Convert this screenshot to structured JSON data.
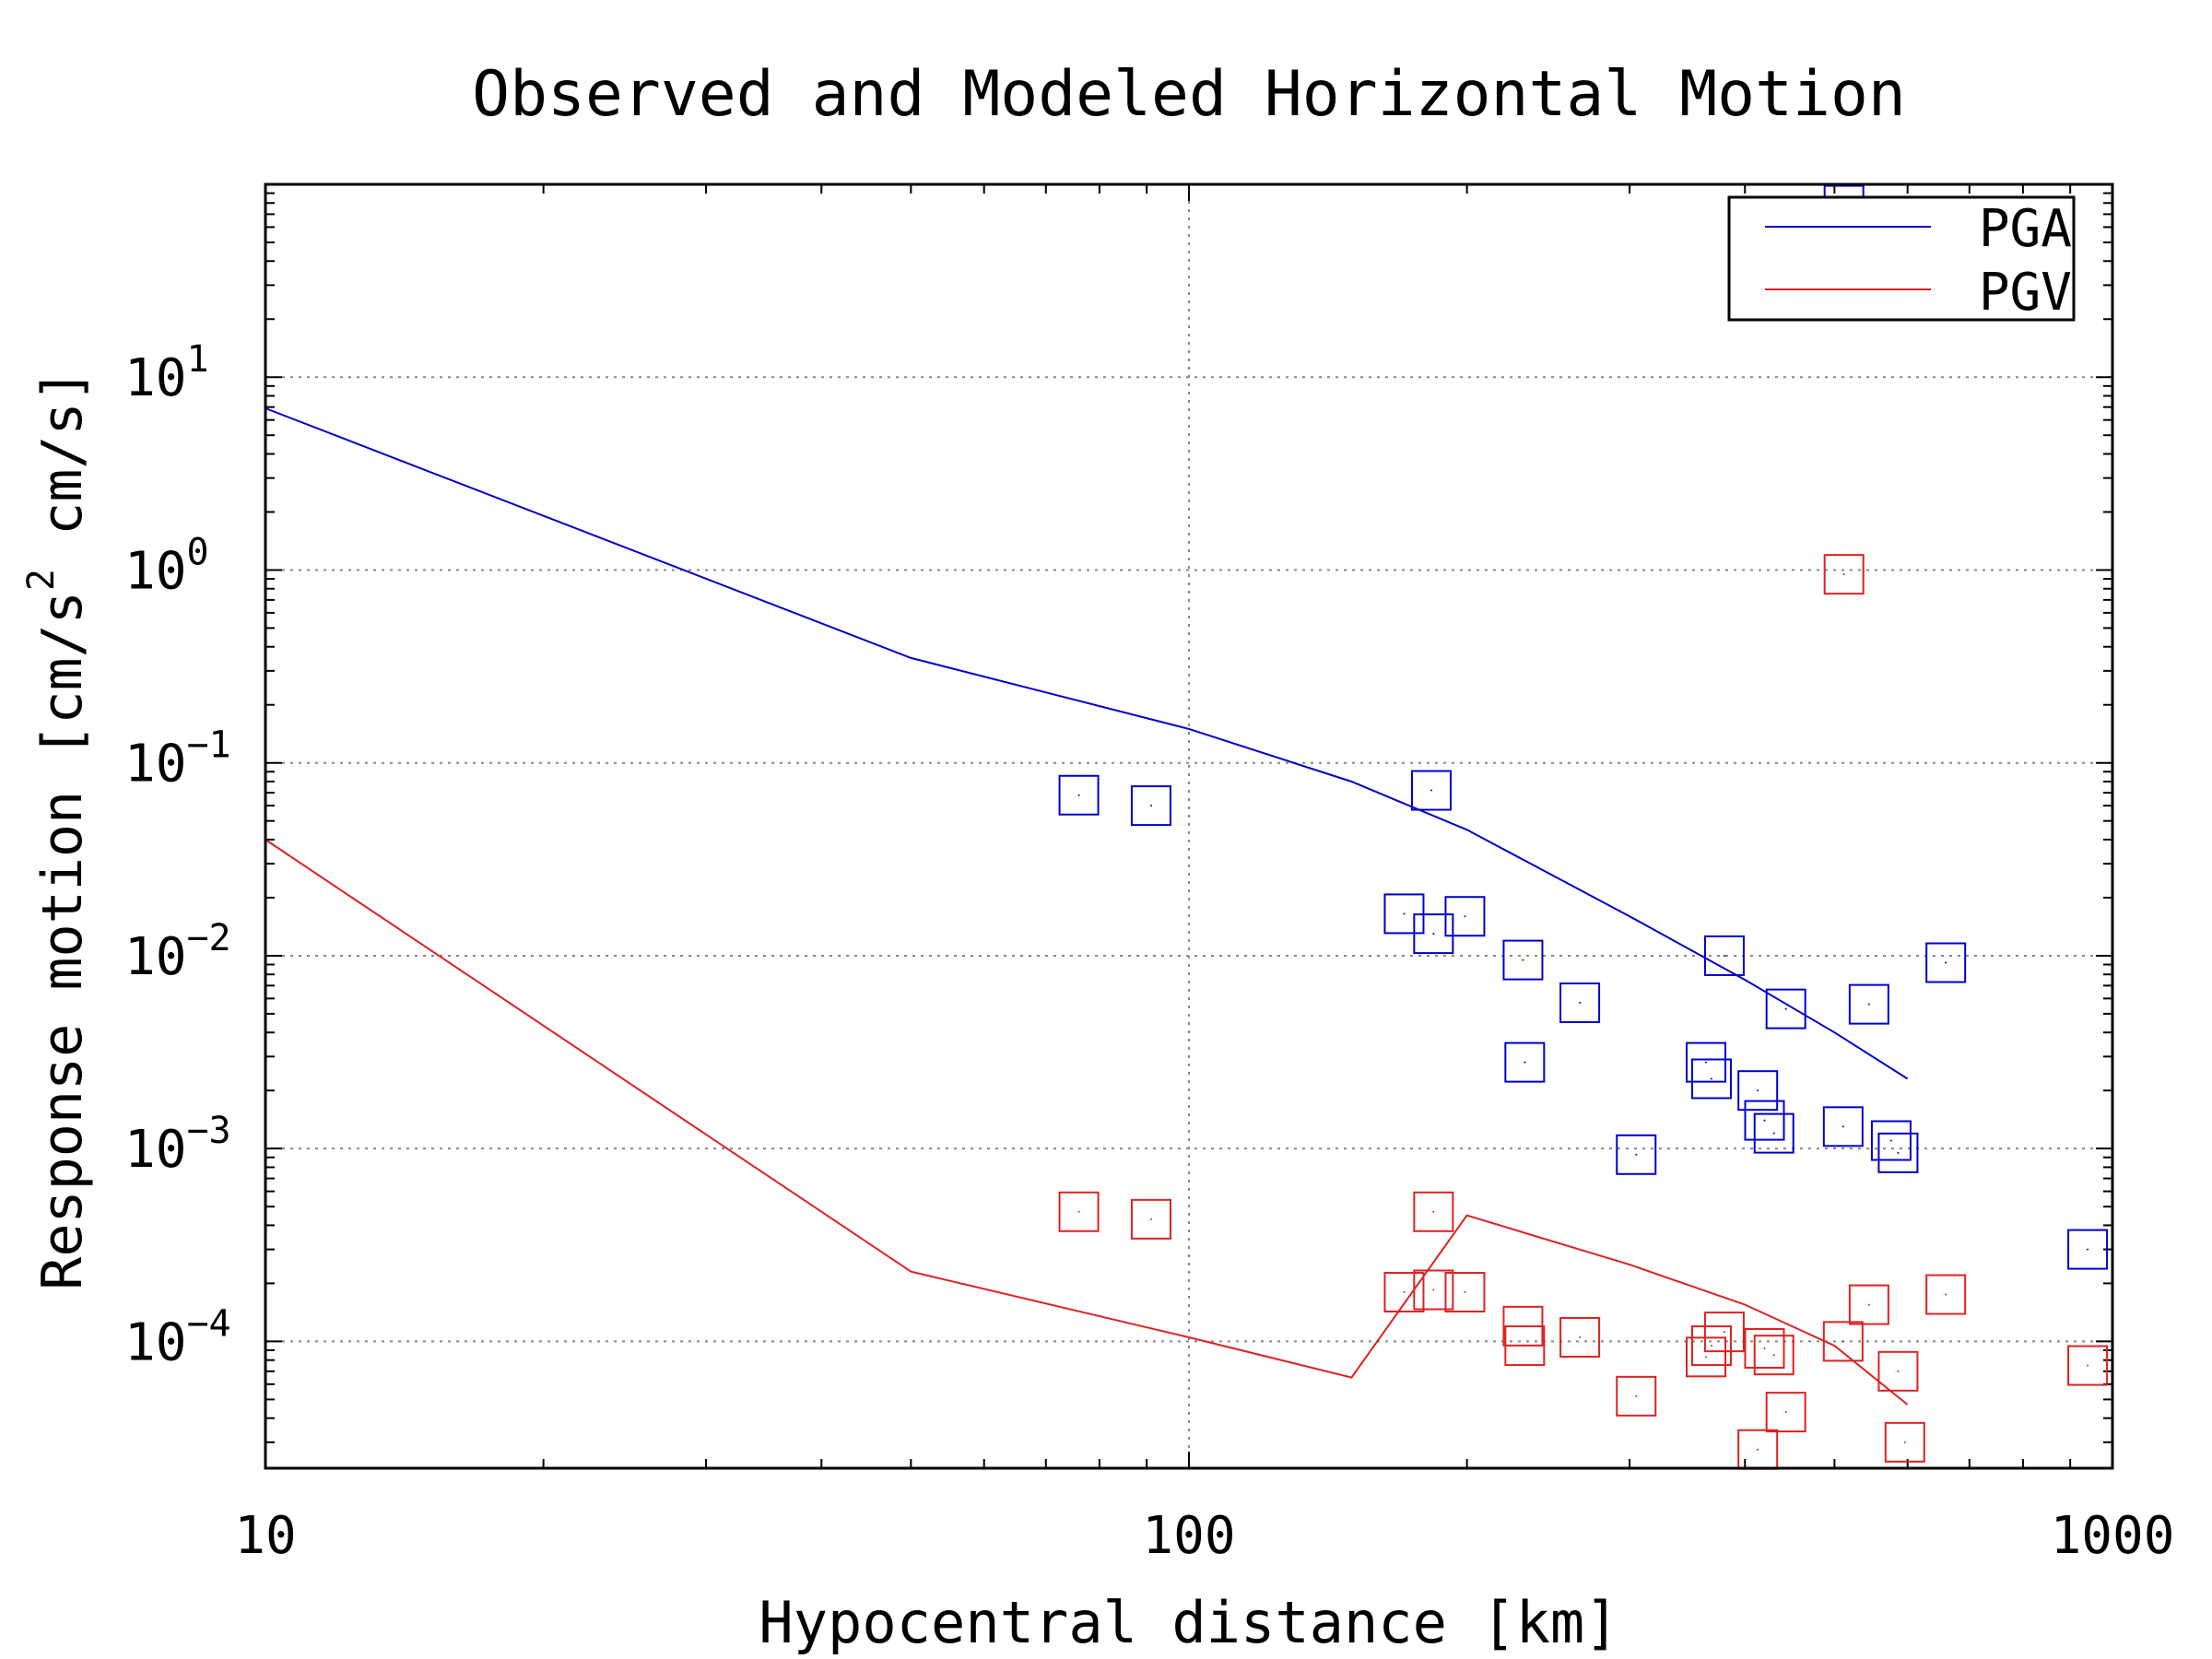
{
  "chart_data": {
    "type": "scatter",
    "title": "Observed and Modeled Horizontal Motion",
    "xlabel": "Hypocentral distance [km]",
    "ylabel": {
      "text": "Response motion [cm/s",
      "sup": "2",
      "text_after": " cm/s]"
    },
    "x_scale": "log",
    "y_scale": "log",
    "xlim": [
      10,
      1000
    ],
    "ylim": [
      2.2e-05,
      100
    ],
    "x_ticks": [
      {
        "value": 10,
        "label": "10"
      },
      {
        "value": 100,
        "label": "100"
      },
      {
        "value": 1000,
        "label": "1000"
      }
    ],
    "y_ticks": [
      {
        "value": 10,
        "base": "10",
        "exp": "1"
      },
      {
        "value": 1,
        "base": "10",
        "exp": "0"
      },
      {
        "value": 0.1,
        "base": "10",
        "exp": "−1"
      },
      {
        "value": 0.01,
        "base": "10",
        "exp": "−2"
      },
      {
        "value": 0.001,
        "base": "10",
        "exp": "−3"
      },
      {
        "value": 0.0001,
        "base": "10",
        "exp": "−4"
      }
    ],
    "grid": true,
    "legend_position": "top-right",
    "series": [
      {
        "name": "PGA",
        "color": "#0000cc",
        "model_line": {
          "x": [
            10,
            50,
            100,
            150,
            200,
            300,
            400,
            500,
            600
          ],
          "y": [
            6.9,
            0.35,
            0.15,
            0.08,
            0.045,
            0.016,
            0.0075,
            0.004,
            0.0023
          ]
        },
        "observed": {
          "x": [
            76,
            91,
            183,
            171,
            184,
            199,
            230,
            265,
            231,
            305,
            363,
            368,
            380,
            413,
            420,
            430,
            443,
            511,
            545,
            586,
            576,
            660,
            940,
            512
          ],
          "y": [
            0.068,
            0.06,
            0.072,
            0.0165,
            0.013,
            0.016,
            0.0095,
            0.0057,
            0.0028,
            0.00093,
            0.0028,
            0.0023,
            0.01,
            0.002,
            0.0014,
            0.0012,
            0.0053,
            0.0013,
            0.0056,
            0.00095,
            0.0011,
            0.0092,
            0.0003,
            78
          ]
        }
      },
      {
        "name": "PGV",
        "color": "#dd2222",
        "model_line": {
          "x": [
            10,
            50,
            100,
            150,
            200,
            300,
            400,
            500,
            600
          ],
          "y": [
            0.04,
            0.00023,
            0.000105,
            6.5e-05,
            0.00045,
            0.00025,
            0.000155,
            9.5e-05,
            4.7e-05
          ]
        },
        "observed": {
          "x": [
            76,
            91,
            184,
            171,
            184,
            199,
            230,
            231,
            265,
            305,
            363,
            368,
            380,
            413,
            420,
            430,
            443,
            511,
            545,
            586,
            596,
            660,
            940,
            512
          ],
          "y": [
            0.00047,
            0.00043,
            0.00047,
            0.00018,
            0.000185,
            0.00018,
            0.00012,
            9.5e-05,
            0.000105,
            5.2e-05,
            8.3e-05,
            9.5e-05,
            0.000112,
            2.75e-05,
            9.2e-05,
            8.5e-05,
            4.3e-05,
            0.0001,
            0.000155,
            7e-05,
            3e-05,
            0.000175,
            7.5e-05,
            0.95
          ]
        }
      }
    ]
  }
}
